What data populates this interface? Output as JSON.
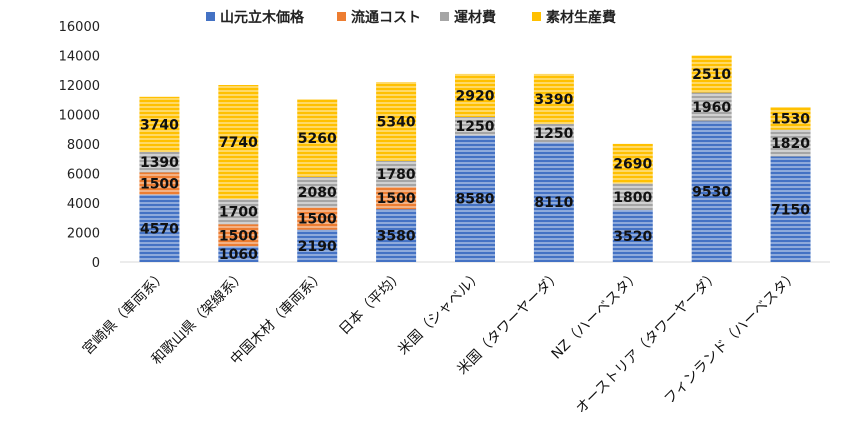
{
  "chart_data": {
    "type": "bar",
    "stacked": true,
    "categories": [
      "宮崎県（車両系）",
      "和歌山県（架線系）",
      "中国木材（車両系）",
      "日本（平均）",
      "米国（シャベル）",
      "米国（タワーヤーダ）",
      "NZ（ハーベスタ）",
      "オーストリア（タワーヤーダ）",
      "フィンランド（ハーベスタ）"
    ],
    "series": [
      {
        "name": "山元立木価格",
        "color": "#4472c4",
        "values": [
          4570,
          1060,
          2190,
          3580,
          8580,
          8110,
          3520,
          9530,
          7150
        ],
        "labels": [
          "4570",
          "1060",
          "2190",
          "3580",
          "8580",
          "8110",
          "3520",
          "9530",
          "7150"
        ]
      },
      {
        "name": "流通コスト",
        "color": "#ed7d31",
        "values": [
          1500,
          1500,
          1500,
          1500,
          0,
          0,
          0,
          0,
          0
        ],
        "labels": [
          "1500",
          "1500",
          "1500",
          "1500",
          "",
          "",
          "",
          "",
          ""
        ]
      },
      {
        "name": "運材費",
        "color": "#a5a5a5",
        "values": [
          1390,
          1700,
          2080,
          1780,
          1250,
          1250,
          1800,
          1960,
          1820
        ],
        "labels": [
          "1390",
          "1700",
          "2080",
          "1780",
          "1250",
          "1250",
          "1800",
          "1960",
          "1820"
        ]
      },
      {
        "name": "素材生産費",
        "color": "#ffc000",
        "values": [
          3740,
          7740,
          5260,
          5340,
          2920,
          3390,
          2690,
          2510,
          1530
        ],
        "labels": [
          "3740",
          "7740",
          "5260",
          "5340",
          "2920",
          "3390",
          "2690",
          "2510",
          "1530"
        ]
      }
    ],
    "yticks": [
      "0",
      "2000",
      "4000",
      "6000",
      "8000",
      "10000",
      "12000",
      "14000",
      "16000"
    ],
    "ylim": [
      0,
      16000
    ],
    "legend_position": "top",
    "grid": false
  }
}
